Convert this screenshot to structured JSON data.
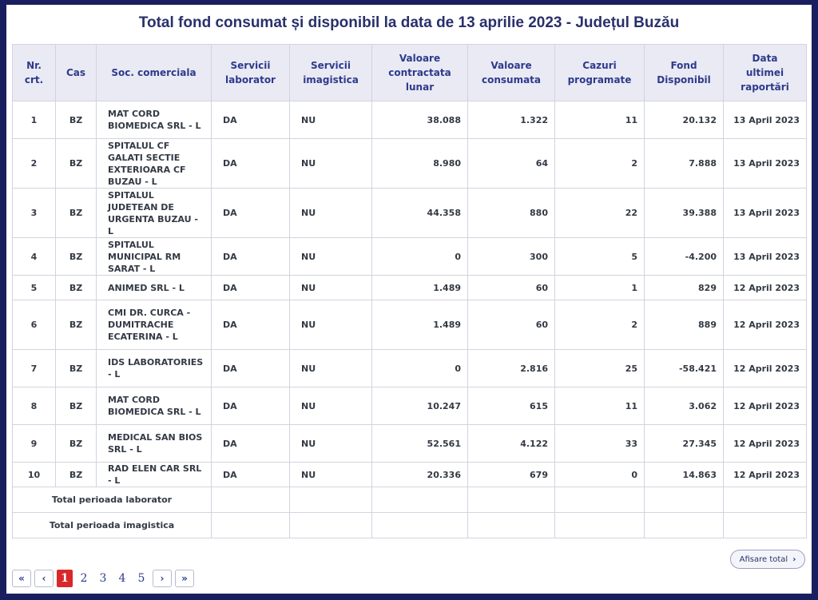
{
  "title": "Total fond consumat și disponibil la data de 13 aprilie 2023 - Județul Buzău",
  "table": {
    "headers": [
      "Nr.\ncrt.",
      "Cas",
      "Soc. comerciala",
      "Servicii\nlaborator",
      "Servicii\nimagistica",
      "Valoare\ncontractata\nlunar",
      "Valoare\nconsumata",
      "Cazuri\nprogramate",
      "Fond\nDisponibil",
      "Data\nultimei\nraportări"
    ],
    "rows": [
      {
        "nr": "1",
        "cas": "BZ",
        "soc": "MAT CORD BIOMEDICA SRL - L",
        "lab": "DA",
        "img": "NU",
        "contract": "38.088",
        "consumat": "1.322",
        "cazuri": "11",
        "fond": "20.132",
        "data": "13 April 2023"
      },
      {
        "nr": "2",
        "cas": "BZ",
        "soc": "SPITALUL CF GALATI SECTIE EXTERIOARA CF BUZAU - L",
        "lab": "DA",
        "img": "NU",
        "contract": "8.980",
        "consumat": "64",
        "cazuri": "2",
        "fond": "7.888",
        "data": "13 April 2023"
      },
      {
        "nr": "3",
        "cas": "BZ",
        "soc": "SPITALUL JUDETEAN DE URGENTA BUZAU - L",
        "lab": "DA",
        "img": "NU",
        "contract": "44.358",
        "consumat": "880",
        "cazuri": "22",
        "fond": "39.388",
        "data": "13 April 2023"
      },
      {
        "nr": "4",
        "cas": "BZ",
        "soc": "SPITALUL MUNICIPAL RM SARAT - L",
        "lab": "DA",
        "img": "NU",
        "contract": "0",
        "consumat": "300",
        "cazuri": "5",
        "fond": "-4.200",
        "data": "13 April 2023"
      },
      {
        "nr": "5",
        "cas": "BZ",
        "soc": "ANIMED SRL - L",
        "lab": "DA",
        "img": "NU",
        "contract": "1.489",
        "consumat": "60",
        "cazuri": "1",
        "fond": "829",
        "data": "12 April 2023"
      },
      {
        "nr": "6",
        "cas": "BZ",
        "soc": "CMI DR. CURCA - DUMITRACHE ECATERINA - L",
        "lab": "DA",
        "img": "NU",
        "contract": "1.489",
        "consumat": "60",
        "cazuri": "2",
        "fond": "889",
        "data": "12 April 2023"
      },
      {
        "nr": "7",
        "cas": "BZ",
        "soc": "IDS LABORATORIES - L",
        "lab": "DA",
        "img": "NU",
        "contract": "0",
        "consumat": "2.816",
        "cazuri": "25",
        "fond": "-58.421",
        "data": "12 April 2023"
      },
      {
        "nr": "8",
        "cas": "BZ",
        "soc": "MAT CORD BIOMEDICA SRL - L",
        "lab": "DA",
        "img": "NU",
        "contract": "10.247",
        "consumat": "615",
        "cazuri": "11",
        "fond": "3.062",
        "data": "12 April 2023"
      },
      {
        "nr": "9",
        "cas": "BZ",
        "soc": "MEDICAL SAN BIOS SRL - L",
        "lab": "DA",
        "img": "NU",
        "contract": "52.561",
        "consumat": "4.122",
        "cazuri": "33",
        "fond": "27.345",
        "data": "12 April 2023"
      },
      {
        "nr": "10",
        "cas": "BZ",
        "soc": "RAD ELEN CAR SRL - L",
        "lab": "DA",
        "img": "NU",
        "contract": "20.336",
        "consumat": "679",
        "cazuri": "0",
        "fond": "14.863",
        "data": "12 April 2023"
      }
    ],
    "totals": [
      "Total perioada laborator",
      "Total perioada imagistica"
    ]
  },
  "show_all_label": "Afisare total",
  "pagination": {
    "first": "«",
    "prev": "‹",
    "pages": [
      "1",
      "2",
      "3",
      "4",
      "5"
    ],
    "active_page": "1",
    "next": "›",
    "last": "»"
  },
  "colors": {
    "background": "#191f5e",
    "title": "#29306b",
    "header_bg": "#e9eaf3",
    "header_text": "#2e3a8c",
    "active_page": "#d8282a"
  }
}
